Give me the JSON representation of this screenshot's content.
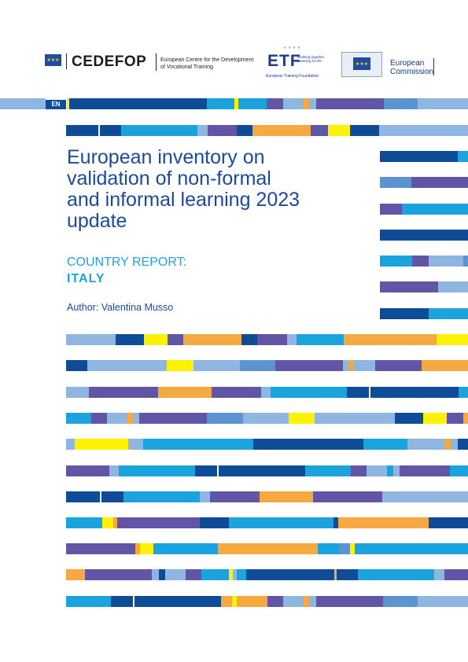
{
  "header": {
    "cedefop_name": "CEDEFOP",
    "cedefop_desc_line1": "European Centre for the Development",
    "cedefop_desc_line2": "of Vocational Training",
    "etf_name": "ETF",
    "etf_tagline_line1": "Working together",
    "etf_tagline_line2": "Learning for life",
    "etf_full": "European Training Foundation",
    "ec_line1": "European",
    "ec_line2": "Commission"
  },
  "language_badge": "EN",
  "title_lines": [
    "European inventory on",
    "validation of non-formal",
    "and informal learning 2023",
    "update"
  ],
  "subtitle": "COUNTRY REPORT:",
  "country": "ITALY",
  "author": "Author: Valentina Musso",
  "colors": {
    "dark_blue": "#0e4c97",
    "cyan": "#1aa3dc",
    "light_blue": "#8fb6e0",
    "mid_blue": "#5b94d1",
    "purple": "#6155a6",
    "orange": "#f7a941",
    "yellow": "#fff200"
  }
}
